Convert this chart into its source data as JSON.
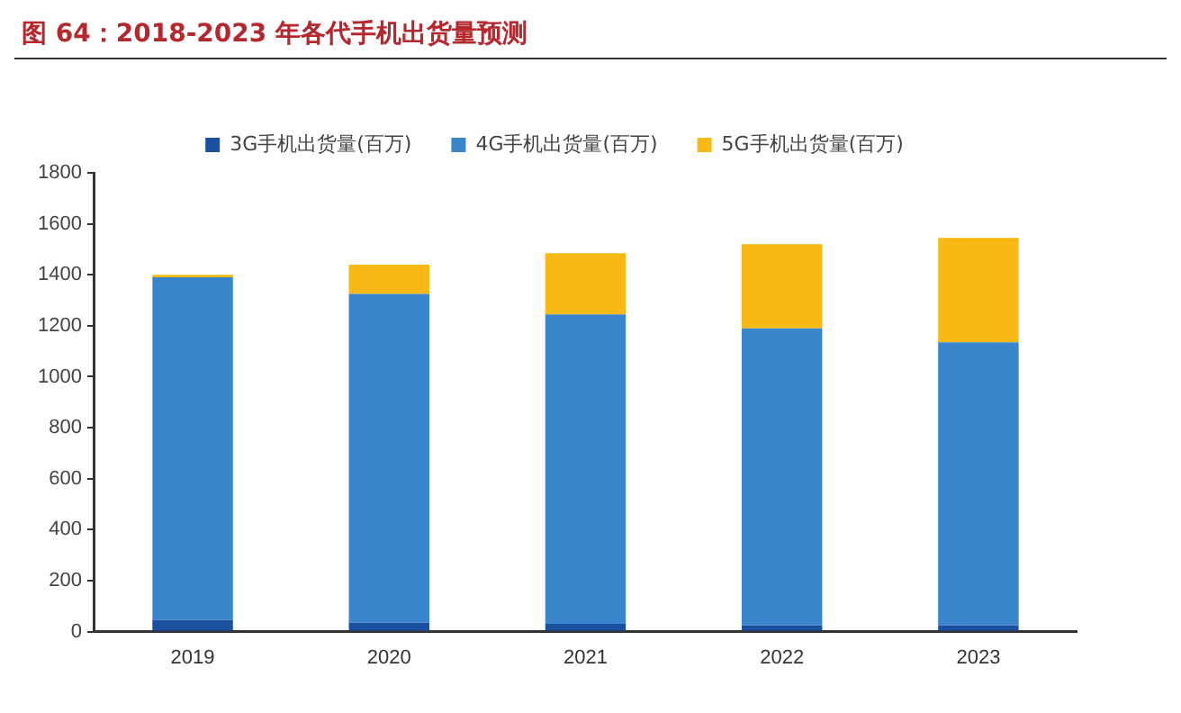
{
  "chart_data": {
    "type": "bar",
    "title": "图 64：2018-2023 年各代手机出货量预测",
    "categories": [
      "2019",
      "2020",
      "2021",
      "2022",
      "2023"
    ],
    "stacked": true,
    "series": [
      {
        "name": "3G手机出货量(百万)",
        "color": "#1b4fa0",
        "values": [
          45,
          35,
          30,
          25,
          25
        ]
      },
      {
        "name": "4G手机出货量(百万)",
        "color": "#3a86cc",
        "values": [
          1345,
          1290,
          1215,
          1165,
          1110
        ]
      },
      {
        "name": "5G手机出货量(百万)",
        "color": "#f9b914",
        "values": [
          10,
          115,
          240,
          330,
          410
        ]
      }
    ],
    "ylim": [
      0,
      1800
    ],
    "yticks": [
      0,
      200,
      400,
      600,
      800,
      1000,
      1200,
      1400,
      1600,
      1800
    ],
    "grid": false,
    "legend": "top"
  }
}
